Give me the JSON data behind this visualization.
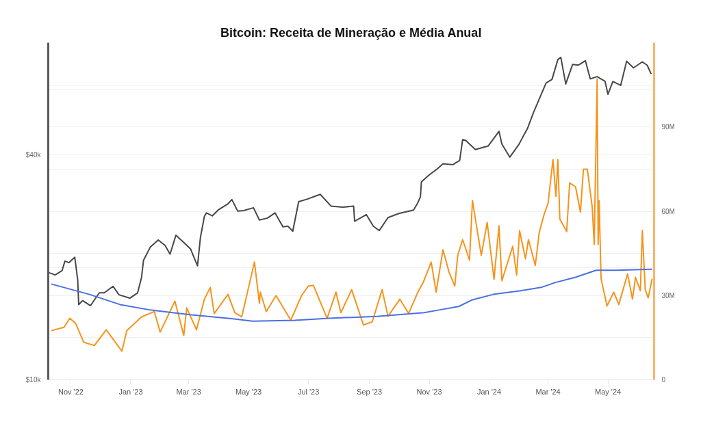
{
  "chart_data": {
    "type": "line",
    "title": "Bitcoin: Receita de Mineração e Média Anual",
    "xlim": [
      "2022-10-09",
      "2024-06-17"
    ],
    "xticks": [
      {
        "value": "2022-11-01",
        "label": "Nov '22"
      },
      {
        "value": "2023-01-01",
        "label": "Jan '23"
      },
      {
        "value": "2023-03-01",
        "label": "Mar '23"
      },
      {
        "value": "2023-05-01",
        "label": "May '23"
      },
      {
        "value": "2023-07-01",
        "label": "Jul '23"
      },
      {
        "value": "2023-09-01",
        "label": "Sep '23"
      },
      {
        "value": "2023-11-01",
        "label": "Nov '23"
      },
      {
        "value": "2024-01-01",
        "label": "Jan '24"
      },
      {
        "value": "2024-03-01",
        "label": "Mar '24"
      },
      {
        "value": "2024-05-01",
        "label": "May '24"
      }
    ],
    "log": "y",
    "ylim": [
      10000,
      80000
    ],
    "yticks": [
      {
        "value": 10000,
        "label": "$10k"
      },
      {
        "value": 20000,
        "label": null
      },
      {
        "value": 40000,
        "label": "$40k"
      },
      {
        "value": 60000,
        "label": null
      }
    ],
    "y2lim": [
      0,
      120
    ],
    "y2ticks": [
      0,
      {
        "value": 15,
        "label": null
      },
      {
        "value": 30,
        "label": "30M"
      },
      {
        "value": 45,
        "label": null
      },
      {
        "value": 60,
        "label": "60M"
      },
      {
        "value": 75,
        "label": null
      },
      {
        "value": 90,
        "label": "90M"
      },
      {
        "value": 105,
        "label": null
      }
    ],
    "grid": "y",
    "line_style": "solid",
    "marker": "none",
    "series": [
      {
        "color": "#474747",
        "x": [
          "2022-10-09",
          "2022-10-16",
          "2022-10-23",
          "2022-10-26",
          "2022-10-30",
          "2022-11-05",
          "2022-11-08",
          "2022-11-09",
          "2022-11-13",
          "2022-11-21",
          "2022-11-30",
          "2022-12-05",
          "2022-12-14",
          "2022-12-20",
          "2022-12-31",
          "2023-01-08",
          "2023-01-12",
          "2023-01-14",
          "2023-01-21",
          "2023-01-29",
          "2023-02-05",
          "2023-02-10",
          "2023-02-16",
          "2023-02-25",
          "2023-03-03",
          "2023-03-10",
          "2023-03-13",
          "2023-03-17",
          "2023-03-19",
          "2023-03-25",
          "2023-03-31",
          "2023-04-10",
          "2023-04-14",
          "2023-04-20",
          "2023-04-26",
          "2023-05-06",
          "2023-05-12",
          "2023-05-20",
          "2023-05-28",
          "2023-06-05",
          "2023-06-10",
          "2023-06-15",
          "2023-06-21",
          "2023-06-30",
          "2023-07-13",
          "2023-07-24",
          "2023-08-05",
          "2023-08-16",
          "2023-08-17",
          "2023-08-29",
          "2023-09-05",
          "2023-09-11",
          "2023-09-20",
          "2023-10-01",
          "2023-10-16",
          "2023-10-20",
          "2023-10-23",
          "2023-10-24",
          "2023-11-01",
          "2023-11-09",
          "2023-11-15",
          "2023-11-25",
          "2023-12-02",
          "2023-12-05",
          "2023-12-08",
          "2023-12-18",
          "2023-12-31",
          "2024-01-11",
          "2024-01-14",
          "2024-01-22",
          "2024-01-31",
          "2024-02-09",
          "2024-02-15",
          "2024-02-28",
          "2024-03-05",
          "2024-03-11",
          "2024-03-14",
          "2024-03-19",
          "2024-03-26",
          "2024-04-01",
          "2024-04-08",
          "2024-04-13",
          "2024-04-20",
          "2024-04-28",
          "2024-05-01",
          "2024-05-06",
          "2024-05-14",
          "2024-05-20",
          "2024-05-27",
          "2024-06-05",
          "2024-06-10",
          "2024-06-14"
        ],
        "values": [
          19400,
          19100,
          19600,
          20800,
          20600,
          21300,
          18500,
          15900,
          16300,
          15800,
          17100,
          17100,
          17800,
          16900,
          16550,
          17100,
          18800,
          20900,
          22700,
          23700,
          22900,
          21700,
          24400,
          23200,
          22400,
          20200,
          24100,
          27400,
          28000,
          27500,
          28500,
          29600,
          30400,
          28300,
          28400,
          28900,
          26800,
          27100,
          28000,
          25700,
          25800,
          25000,
          30000,
          30500,
          31400,
          29200,
          29000,
          29200,
          26600,
          27700,
          25800,
          25100,
          27200,
          27900,
          28500,
          29700,
          30900,
          33900,
          35400,
          36700,
          37900,
          37700,
          38700,
          44000,
          43800,
          41400,
          42300,
          46300,
          42800,
          39500,
          42600,
          47100,
          51900,
          62400,
          63800,
          72100,
          73100,
          62000,
          70000,
          69700,
          71600,
          64000,
          64900,
          63100,
          58200,
          63000,
          61500,
          71400,
          68500,
          71100,
          69600,
          66000
        ]
      },
      {
        "color": "#f7931a",
        "axis": "y2",
        "x": [
          "2022-10-12",
          "2022-10-25",
          "2022-10-31",
          "2022-11-06",
          "2022-11-14",
          "2022-11-25",
          "2022-12-07",
          "2022-12-23",
          "2022-12-28",
          "2023-01-12",
          "2023-01-25",
          "2023-01-31",
          "2023-02-15",
          "2023-02-24",
          "2023-02-27",
          "2023-03-09",
          "2023-03-17",
          "2023-03-23",
          "2023-03-27",
          "2023-04-10",
          "2023-04-17",
          "2023-04-24",
          "2023-05-07",
          "2023-05-12",
          "2023-05-13",
          "2023-05-19",
          "2023-05-29",
          "2023-06-13",
          "2023-06-24",
          "2023-07-01",
          "2023-07-06",
          "2023-07-20",
          "2023-07-29",
          "2023-08-03",
          "2023-08-14",
          "2023-08-26",
          "2023-09-04",
          "2023-09-14",
          "2023-09-20",
          "2023-10-02",
          "2023-10-11",
          "2023-10-20",
          "2023-10-26",
          "2023-11-03",
          "2023-11-08",
          "2023-11-15",
          "2023-11-21",
          "2023-11-27",
          "2023-11-30",
          "2023-12-05",
          "2023-12-12",
          "2023-12-15",
          "2023-12-24",
          "2023-12-30",
          "2024-01-06",
          "2024-01-11",
          "2024-01-14",
          "2024-01-25",
          "2024-01-29",
          "2024-02-01",
          "2024-02-07",
          "2024-02-10",
          "2024-02-17",
          "2024-02-21",
          "2024-02-26",
          "2024-03-01",
          "2024-03-06",
          "2024-03-09",
          "2024-03-11",
          "2024-03-13",
          "2024-03-20",
          "2024-03-23",
          "2024-03-29",
          "2024-04-03",
          "2024-04-06",
          "2024-04-10",
          "2024-04-15",
          "2024-04-17",
          "2024-04-20",
          "2024-04-21",
          "2024-04-22",
          "2024-04-24",
          "2024-04-30",
          "2024-05-07",
          "2024-05-12",
          "2024-05-21",
          "2024-05-26",
          "2024-05-29",
          "2024-06-03",
          "2024-06-05",
          "2024-06-08",
          "2024-06-11",
          "2024-06-15"
        ],
        "values": [
          17.5,
          18.7,
          21.9,
          20.0,
          13.4,
          12.2,
          17.8,
          10.2,
          17.5,
          22.4,
          24.3,
          17.0,
          28.0,
          15.8,
          25.6,
          17.8,
          28.7,
          32.9,
          23.6,
          30.4,
          23.9,
          22.4,
          41.9,
          27.3,
          31.2,
          24.3,
          30.0,
          21.2,
          30.0,
          33.4,
          33.6,
          21.9,
          31.2,
          23.9,
          32.1,
          19.5,
          20.7,
          32.1,
          22.6,
          28.7,
          23.6,
          30.9,
          34.8,
          41.9,
          31.2,
          46.3,
          38.5,
          33.4,
          44.3,
          49.9,
          42.6,
          63.8,
          44.3,
          56.0,
          35.8,
          54.8,
          35.3,
          47.5,
          37.3,
          53.1,
          43.1,
          49.9,
          40.7,
          52.4,
          58.9,
          62.8,
          78.4,
          65.3,
          78.4,
          57.2,
          52.8,
          70.1,
          68.7,
          59.7,
          75.0,
          75.0,
          61.4,
          48.2,
          107.1,
          48.2,
          63.8,
          36.0,
          26.3,
          31.2,
          26.8,
          37.7,
          28.7,
          36.5,
          31.7,
          53.1,
          32.1,
          29.2,
          36.0
        ]
      },
      {
        "color": "#4a6fe3",
        "axis": "y2",
        "x": [
          "2022-10-12",
          "2022-11-20",
          "2022-12-21",
          "2023-01-22",
          "2023-03-04",
          "2023-04-15",
          "2023-05-05",
          "2023-06-17",
          "2023-07-22",
          "2023-09-09",
          "2023-10-27",
          "2023-11-10",
          "2023-12-01",
          "2023-12-15",
          "2024-01-05",
          "2024-02-02",
          "2024-02-23",
          "2024-03-08",
          "2024-03-29",
          "2024-04-19",
          "2024-05-10",
          "2024-06-15"
        ],
        "values": [
          34.1,
          30.4,
          26.8,
          24.8,
          23.1,
          21.7,
          20.9,
          21.2,
          21.9,
          22.6,
          23.9,
          24.8,
          26.1,
          28.5,
          30.4,
          31.7,
          32.9,
          34.6,
          36.5,
          39.0,
          39.0,
          39.4
        ]
      }
    ]
  }
}
